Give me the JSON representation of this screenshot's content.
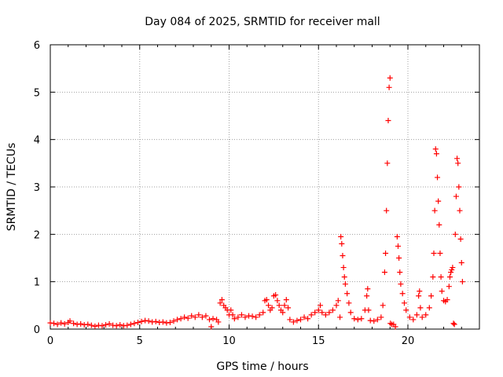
{
  "chart_data": {
    "type": "scatter",
    "title": "Day 084 of 2025, SRMTID for receiver mall",
    "xlabel": "GPS time / hours",
    "ylabel": "SRMTID / TECUs",
    "xlim": [
      0,
      24
    ],
    "ylim": [
      0,
      6
    ],
    "xticks": [
      0,
      5,
      10,
      15,
      20
    ],
    "xtick_labels": [
      "0",
      "5",
      "10",
      "15",
      "20"
    ],
    "yticks": [
      0,
      1,
      2,
      3,
      4,
      5,
      6
    ],
    "ytick_labels": [
      "0",
      "1",
      "2",
      "3",
      "4",
      "5",
      "6"
    ],
    "grid": true,
    "marker": "plus",
    "colors": {
      "series": "#ff0000",
      "grid": "#a0a0a0",
      "axis": "#000000"
    },
    "series": [
      {
        "name": "SRMTID",
        "points": [
          [
            0.0,
            0.13
          ],
          [
            0.2,
            0.12
          ],
          [
            0.4,
            0.1
          ],
          [
            0.6,
            0.13
          ],
          [
            0.8,
            0.11
          ],
          [
            1.0,
            0.14
          ],
          [
            1.1,
            0.17
          ],
          [
            1.3,
            0.12
          ],
          [
            1.5,
            0.1
          ],
          [
            1.7,
            0.11
          ],
          [
            1.9,
            0.09
          ],
          [
            2.1,
            0.1
          ],
          [
            2.3,
            0.08
          ],
          [
            2.5,
            0.06
          ],
          [
            2.7,
            0.08
          ],
          [
            2.9,
            0.07
          ],
          [
            3.1,
            0.09
          ],
          [
            3.3,
            0.11
          ],
          [
            3.5,
            0.08
          ],
          [
            3.7,
            0.07
          ],
          [
            3.9,
            0.09
          ],
          [
            4.1,
            0.07
          ],
          [
            4.3,
            0.08
          ],
          [
            4.5,
            0.1
          ],
          [
            4.7,
            0.12
          ],
          [
            4.9,
            0.14
          ],
          [
            5.1,
            0.16
          ],
          [
            5.3,
            0.18
          ],
          [
            5.5,
            0.17
          ],
          [
            5.7,
            0.15
          ],
          [
            5.9,
            0.16
          ],
          [
            6.1,
            0.14
          ],
          [
            6.3,
            0.15
          ],
          [
            6.5,
            0.13
          ],
          [
            6.7,
            0.14
          ],
          [
            6.9,
            0.17
          ],
          [
            7.1,
            0.2
          ],
          [
            7.3,
            0.22
          ],
          [
            7.5,
            0.25
          ],
          [
            7.7,
            0.23
          ],
          [
            7.9,
            0.28
          ],
          [
            8.1,
            0.25
          ],
          [
            8.3,
            0.3
          ],
          [
            8.5,
            0.25
          ],
          [
            8.7,
            0.28
          ],
          [
            8.9,
            0.2
          ],
          [
            9.0,
            0.05
          ],
          [
            9.1,
            0.22
          ],
          [
            9.3,
            0.2
          ],
          [
            9.4,
            0.15
          ],
          [
            9.5,
            0.55
          ],
          [
            9.6,
            0.62
          ],
          [
            9.7,
            0.5
          ],
          [
            9.8,
            0.45
          ],
          [
            9.9,
            0.4
          ],
          [
            10.0,
            0.3
          ],
          [
            10.1,
            0.4
          ],
          [
            10.2,
            0.3
          ],
          [
            10.3,
            0.22
          ],
          [
            10.5,
            0.25
          ],
          [
            10.7,
            0.3
          ],
          [
            10.9,
            0.25
          ],
          [
            11.1,
            0.28
          ],
          [
            11.3,
            0.27
          ],
          [
            11.5,
            0.25
          ],
          [
            11.7,
            0.3
          ],
          [
            11.9,
            0.35
          ],
          [
            12.0,
            0.6
          ],
          [
            12.1,
            0.62
          ],
          [
            12.2,
            0.5
          ],
          [
            12.3,
            0.4
          ],
          [
            12.4,
            0.45
          ],
          [
            12.5,
            0.7
          ],
          [
            12.6,
            0.72
          ],
          [
            12.7,
            0.6
          ],
          [
            12.8,
            0.5
          ],
          [
            12.9,
            0.4
          ],
          [
            13.0,
            0.35
          ],
          [
            13.1,
            0.5
          ],
          [
            13.2,
            0.62
          ],
          [
            13.3,
            0.45
          ],
          [
            13.4,
            0.2
          ],
          [
            13.6,
            0.15
          ],
          [
            13.8,
            0.18
          ],
          [
            14.0,
            0.2
          ],
          [
            14.2,
            0.25
          ],
          [
            14.4,
            0.22
          ],
          [
            14.6,
            0.3
          ],
          [
            14.8,
            0.35
          ],
          [
            15.0,
            0.4
          ],
          [
            15.1,
            0.5
          ],
          [
            15.2,
            0.35
          ],
          [
            15.4,
            0.3
          ],
          [
            15.6,
            0.35
          ],
          [
            15.8,
            0.4
          ],
          [
            16.0,
            0.5
          ],
          [
            16.1,
            0.6
          ],
          [
            16.2,
            0.25
          ],
          [
            16.25,
            1.95
          ],
          [
            16.3,
            1.8
          ],
          [
            16.35,
            1.55
          ],
          [
            16.4,
            1.3
          ],
          [
            16.45,
            1.1
          ],
          [
            16.5,
            0.95
          ],
          [
            16.6,
            0.75
          ],
          [
            16.7,
            0.55
          ],
          [
            16.8,
            0.35
          ],
          [
            17.0,
            0.22
          ],
          [
            17.2,
            0.2
          ],
          [
            17.4,
            0.22
          ],
          [
            17.6,
            0.4
          ],
          [
            17.7,
            0.7
          ],
          [
            17.75,
            0.85
          ],
          [
            17.8,
            0.4
          ],
          [
            17.9,
            0.18
          ],
          [
            18.1,
            0.17
          ],
          [
            18.3,
            0.2
          ],
          [
            18.5,
            0.25
          ],
          [
            18.6,
            0.5
          ],
          [
            18.7,
            1.2
          ],
          [
            18.75,
            1.6
          ],
          [
            18.8,
            2.5
          ],
          [
            18.85,
            3.5
          ],
          [
            18.9,
            4.4
          ],
          [
            18.95,
            5.1
          ],
          [
            19.0,
            5.3
          ],
          [
            19.02,
            0.12
          ],
          [
            19.1,
            0.1
          ],
          [
            19.2,
            0.1
          ],
          [
            19.3,
            0.05
          ],
          [
            19.4,
            1.95
          ],
          [
            19.45,
            1.75
          ],
          [
            19.5,
            1.5
          ],
          [
            19.55,
            1.2
          ],
          [
            19.6,
            0.95
          ],
          [
            19.7,
            0.75
          ],
          [
            19.8,
            0.55
          ],
          [
            19.9,
            0.4
          ],
          [
            20.1,
            0.25
          ],
          [
            20.3,
            0.2
          ],
          [
            20.5,
            0.3
          ],
          [
            20.6,
            0.7
          ],
          [
            20.65,
            0.8
          ],
          [
            20.7,
            0.45
          ],
          [
            20.8,
            0.25
          ],
          [
            21.0,
            0.3
          ],
          [
            21.2,
            0.45
          ],
          [
            21.3,
            0.7
          ],
          [
            21.4,
            1.1
          ],
          [
            21.45,
            1.6
          ],
          [
            21.5,
            2.5
          ],
          [
            21.55,
            3.8
          ],
          [
            21.6,
            3.7
          ],
          [
            21.65,
            3.2
          ],
          [
            21.7,
            2.7
          ],
          [
            21.75,
            2.2
          ],
          [
            21.8,
            1.6
          ],
          [
            21.85,
            1.1
          ],
          [
            21.9,
            0.8
          ],
          [
            22.0,
            0.6
          ],
          [
            22.1,
            0.58
          ],
          [
            22.2,
            0.62
          ],
          [
            22.3,
            0.9
          ],
          [
            22.35,
            1.1
          ],
          [
            22.4,
            1.2
          ],
          [
            22.45,
            1.25
          ],
          [
            22.5,
            1.3
          ],
          [
            22.55,
            0.12
          ],
          [
            22.6,
            0.1
          ],
          [
            22.65,
            2.0
          ],
          [
            22.7,
            2.8
          ],
          [
            22.75,
            3.6
          ],
          [
            22.8,
            3.5
          ],
          [
            22.85,
            3.0
          ],
          [
            22.9,
            2.5
          ],
          [
            22.95,
            1.9
          ],
          [
            23.0,
            1.4
          ],
          [
            23.05,
            1.0
          ]
        ]
      }
    ]
  }
}
